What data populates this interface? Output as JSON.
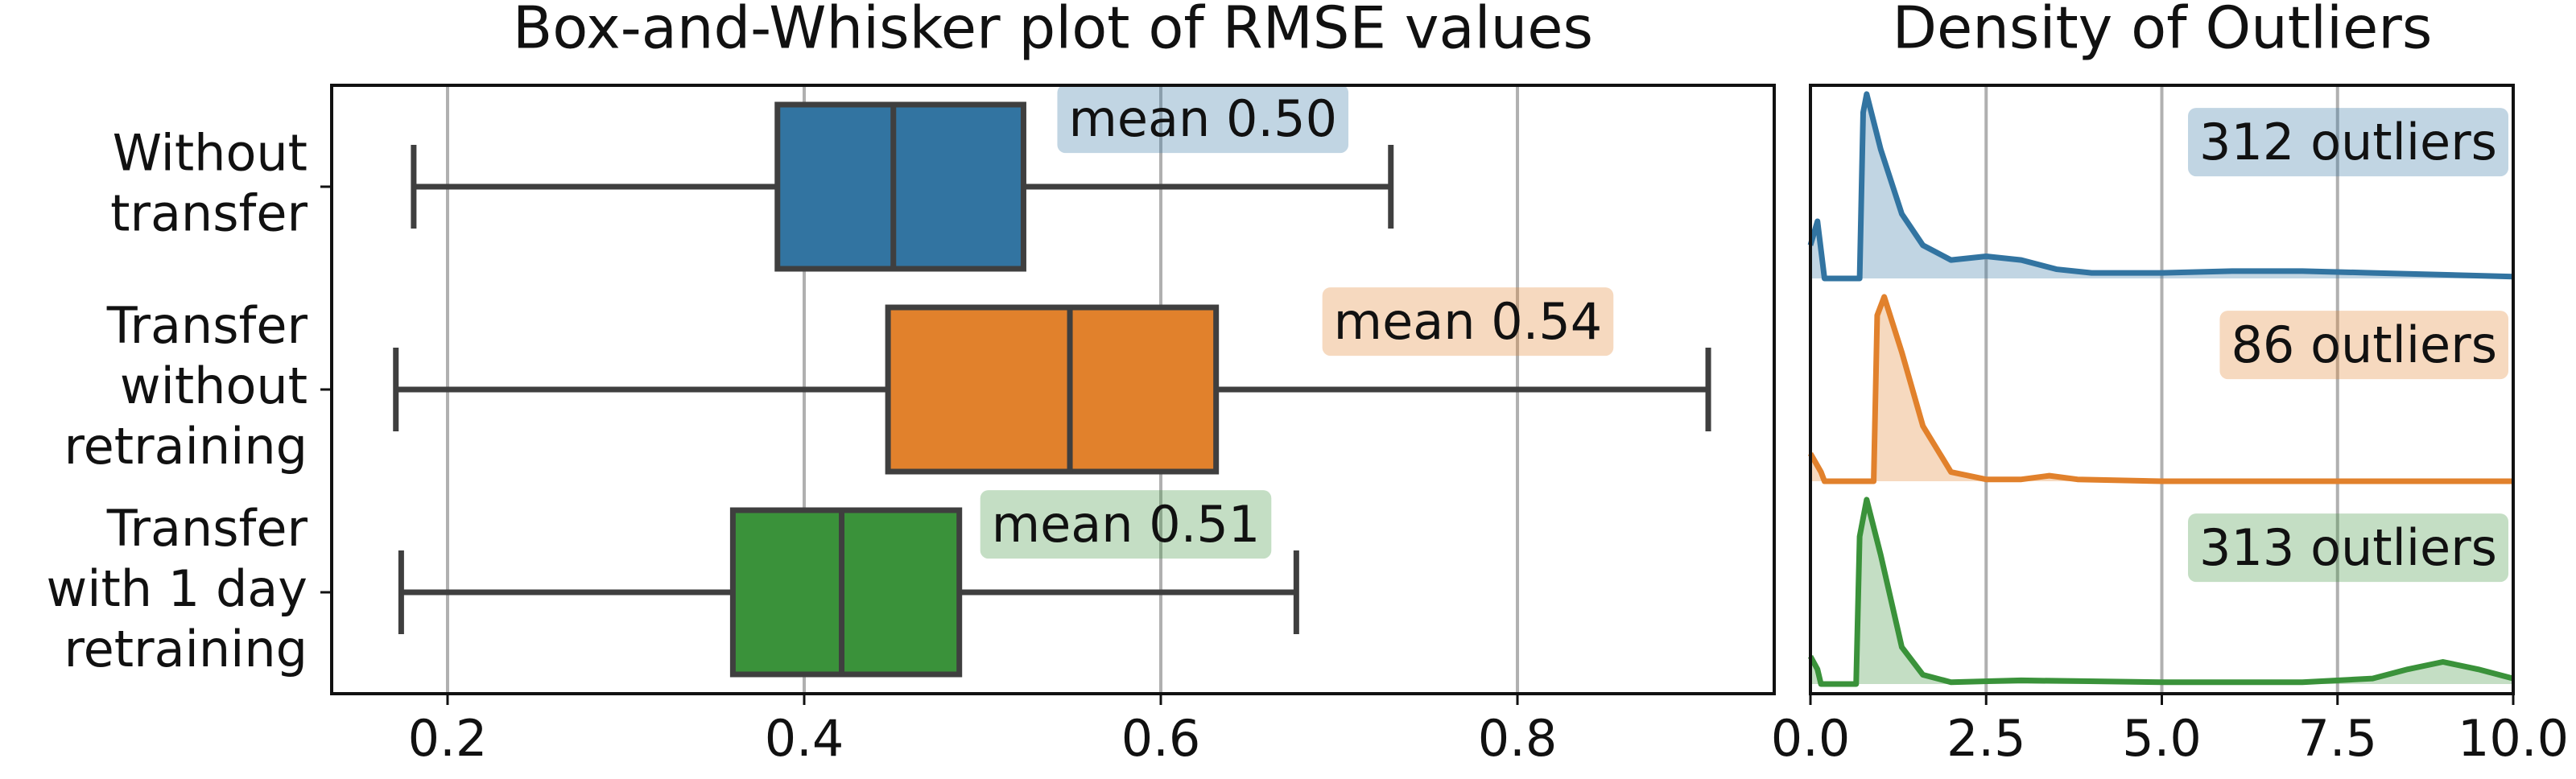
{
  "chart_data": [
    {
      "type": "box",
      "title": "Box-and-Whisker plot of RMSE values",
      "categories": [
        "Without\ntransfer",
        "Transfer\nwithout\nretraining",
        "Transfer\nwith 1 day\nretraining"
      ],
      "boxes": [
        {
          "whislo": 0.181,
          "q1": 0.385,
          "med": 0.45,
          "q3": 0.523,
          "whishi": 0.729
        },
        {
          "whislo": 0.171,
          "q1": 0.447,
          "med": 0.549,
          "q3": 0.631,
          "whishi": 0.907
        },
        {
          "whislo": 0.174,
          "q1": 0.36,
          "med": 0.421,
          "q3": 0.487,
          "whishi": 0.676
        }
      ],
      "annotations": [
        "mean 0.50",
        "mean 0.54",
        "mean 0.51"
      ],
      "colors": [
        "#3274a1",
        "#e1812c",
        "#3a923a"
      ],
      "xlim": [
        0.135,
        0.944
      ],
      "xticks": [
        0.2,
        0.4,
        0.6,
        0.8
      ],
      "grid": true
    },
    {
      "type": "density",
      "title": "Density of Outliers",
      "series": [
        {
          "color": "#3274a1",
          "annotation": "312 outliers",
          "x": [
            0,
            0.1,
            0.2,
            0.7,
            0.75,
            0.8,
            1.0,
            1.3,
            1.6,
            2.0,
            2.5,
            3.0,
            3.5,
            4,
            5,
            6,
            7,
            8,
            9,
            10
          ],
          "values": [
            0.18,
            0.31,
            0,
            0,
            0.9,
            1.0,
            0.7,
            0.35,
            0.18,
            0.1,
            0.12,
            0.1,
            0.05,
            0.03,
            0.03,
            0.04,
            0.04,
            0.03,
            0.02,
            0.01
          ]
        },
        {
          "color": "#e1812c",
          "annotation": "86 outliers",
          "x": [
            0,
            0.15,
            0.2,
            0.9,
            0.95,
            1.05,
            1.3,
            1.6,
            2.0,
            2.5,
            3.0,
            3.4,
            3.8,
            5,
            10
          ],
          "values": [
            0.15,
            0.05,
            0,
            0,
            0.9,
            1.0,
            0.7,
            0.3,
            0.05,
            0.01,
            0.01,
            0.03,
            0.01,
            0,
            0
          ]
        },
        {
          "color": "#3a923a",
          "annotation": "313 outliers",
          "x": [
            0,
            0.1,
            0.15,
            0.65,
            0.7,
            0.8,
            1.0,
            1.3,
            1.6,
            2,
            3,
            5,
            7,
            8,
            8.5,
            9,
            9.5,
            10
          ],
          "values": [
            0.15,
            0.08,
            0,
            0,
            0.8,
            1.0,
            0.7,
            0.2,
            0.05,
            0.01,
            0.02,
            0.01,
            0.01,
            0.03,
            0.08,
            0.12,
            0.08,
            0.03
          ]
        }
      ],
      "xlim": [
        0,
        10
      ],
      "xticks": [
        {
          "value": 0,
          "label": "0.0"
        },
        2.5,
        {
          "value": 5,
          "label": "5.0"
        },
        7.5,
        {
          "value": 10,
          "label": "10.0"
        }
      ],
      "ylim": [
        0,
        1.1
      ],
      "grid": true
    }
  ]
}
